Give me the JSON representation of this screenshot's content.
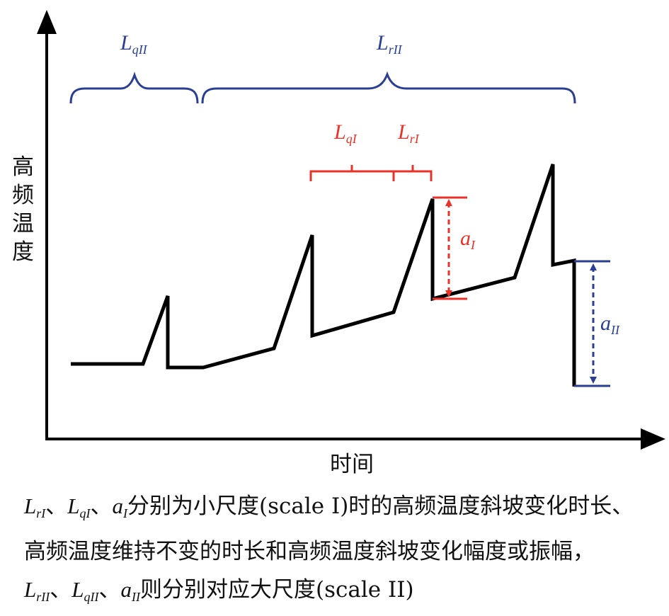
{
  "axes": {
    "y_label": "高频温度",
    "x_label": "时间"
  },
  "annotations": {
    "Lq2": {
      "main": "L",
      "sub": "qII"
    },
    "Lr2": {
      "main": "L",
      "sub": "rII"
    },
    "Lq1": {
      "main": "L",
      "sub": "qI"
    },
    "Lr1": {
      "main": "L",
      "sub": "rI"
    },
    "a1": {
      "main": "a",
      "sub": "I"
    },
    "a2": {
      "main": "a",
      "sub": "II"
    }
  },
  "caption": {
    "line1": {
      "lr1_main": "L",
      "lr1_sub": "rI",
      "sep1": "、",
      "lq1_main": "L",
      "lq1_sub": "qI",
      "sep2": "、",
      "a1_main": "a",
      "a1_sub": "I",
      "text": "分别为小尺度(scale I)时的高频温度斜坡变化时长、"
    },
    "line2": "高频温度维持不变的时长和高频温度斜坡变化幅度或振幅，",
    "line3": {
      "lr2_main": "L",
      "lr2_sub": "rII",
      "sep1": "、",
      "lq2_main": "L",
      "lq2_sub": "qII",
      "sep2": "、",
      "a2_main": "a",
      "a2_sub": "II",
      "text": "则分别对应大尺度(scale II)"
    }
  },
  "colors": {
    "signal": "#000000",
    "scale_I": "#e8322a",
    "scale_II": "#2a3f93"
  }
}
